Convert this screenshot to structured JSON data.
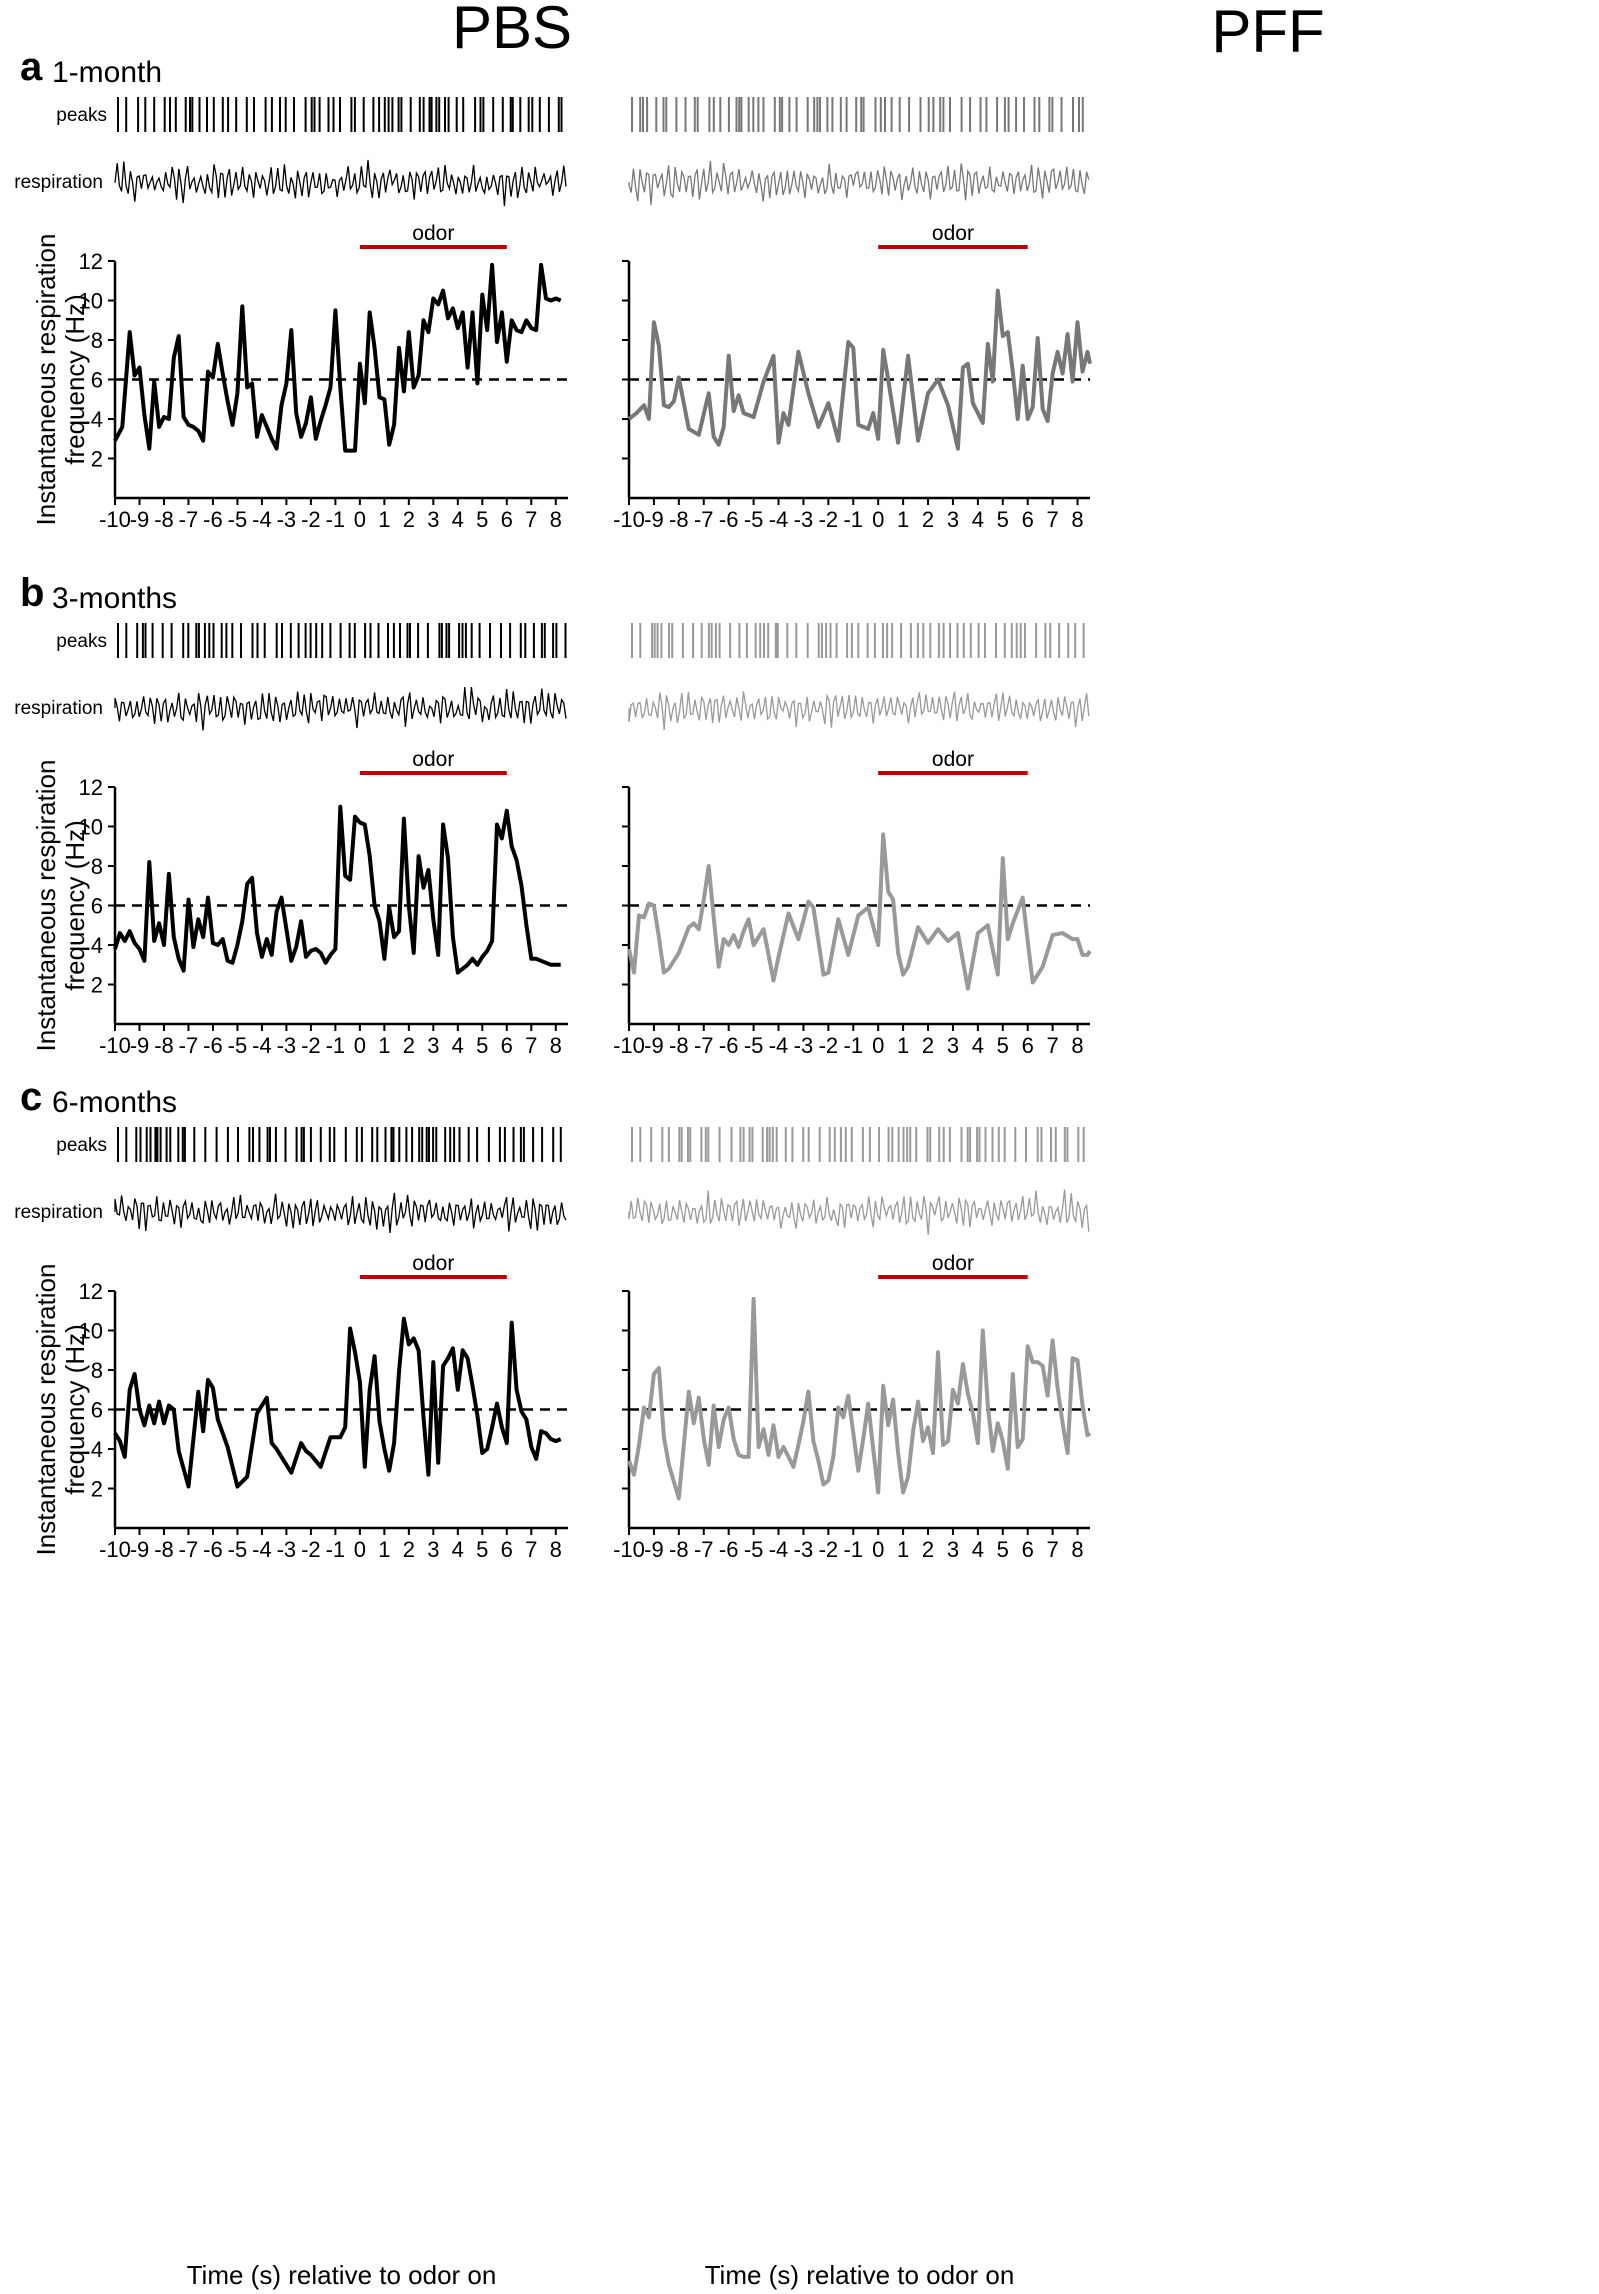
{
  "columns": [
    "PBS",
    "PFF"
  ],
  "trace_labels": {
    "peaks": "peaks",
    "respiration": "respiration"
  },
  "odor_label": "odor",
  "chart_data": {
    "type": "line",
    "xlabel": "Time (s) relative to odor on",
    "ylabel_lines": [
      "Instantaneous respiration",
      "frequency (Hz)"
    ],
    "xlim": [
      -10,
      8.5
    ],
    "ylim": [
      0,
      12
    ],
    "xticks": [
      -10,
      -9,
      -8,
      -7,
      -6,
      -5,
      -4,
      -3,
      -2,
      -1,
      0,
      1,
      2,
      3,
      4,
      5,
      6,
      7,
      8
    ],
    "yticks": [
      2,
      4,
      6,
      8,
      10,
      12
    ],
    "reference_line_y": 6,
    "odor_window": [
      0,
      6
    ],
    "colors": {
      "pbs": "#000000",
      "pff_1": "#777777",
      "pff_3": "#999999",
      "pff_6": "#999999",
      "odor": "#c00000"
    },
    "panels": [
      {
        "letter": "a",
        "age": "1-month",
        "pbs_x": [
          -10,
          -9.7,
          -9.4,
          -9.2,
          -9.0,
          -8.8,
          -8.6,
          -8.4,
          -8.2,
          -8.0,
          -7.8,
          -7.6,
          -7.4,
          -7.2,
          -7.0,
          -6.8,
          -6.6,
          -6.4,
          -6.2,
          -6.0,
          -5.8,
          -5.6,
          -5.4,
          -5.2,
          -5.0,
          -4.8,
          -4.6,
          -4.4,
          -4.2,
          -4.0,
          -3.8,
          -3.6,
          -3.4,
          -3.2,
          -3.0,
          -2.8,
          -2.6,
          -2.4,
          -2.2,
          -2.0,
          -1.8,
          -1.6,
          -1.4,
          -1.2,
          -1.0,
          -0.8,
          -0.6,
          -0.4,
          -0.2,
          0.0,
          0.2,
          0.4,
          0.6,
          0.8,
          1.0,
          1.2,
          1.4,
          1.6,
          1.8,
          2.0,
          2.2,
          2.4,
          2.6,
          2.8,
          3.0,
          3.2,
          3.4,
          3.6,
          3.8,
          4.0,
          4.2,
          4.4,
          4.6,
          4.8,
          5.0,
          5.2,
          5.4,
          5.6,
          5.8,
          6.0,
          6.2,
          6.4,
          6.6,
          6.8,
          7.0,
          7.2,
          7.4,
          7.6,
          7.8,
          8.0,
          8.2
        ],
        "pbs_y": [
          2.9,
          3.6,
          8.4,
          6.2,
          6.6,
          4.2,
          2.5,
          5.9,
          3.6,
          4.1,
          4.0,
          7.1,
          8.2,
          4.1,
          3.7,
          3.6,
          3.4,
          2.9,
          6.4,
          6.1,
          7.8,
          6.3,
          4.9,
          3.7,
          5.3,
          9.7,
          5.6,
          5.8,
          3.1,
          4.2,
          3.6,
          3.0,
          2.5,
          4.7,
          5.8,
          8.5,
          4.3,
          3.1,
          3.8,
          5.1,
          3.0,
          3.9,
          4.7,
          5.6,
          9.5,
          5.6,
          2.4,
          2.4,
          2.4,
          6.8,
          4.8,
          9.4,
          7.6,
          5.1,
          5.0,
          2.7,
          3.7,
          7.6,
          5.4,
          8.4,
          5.6,
          6.2,
          9.0,
          8.4,
          10.1,
          9.8,
          10.5,
          9.1,
          9.6,
          8.6,
          9.4,
          6.6,
          9.4,
          5.8,
          10.3,
          8.5,
          11.8,
          7.9,
          9.4,
          6.9,
          9.0,
          8.5,
          8.4,
          9.0,
          8.6,
          8.5,
          11.8,
          10.1,
          10.0,
          10.1,
          10.0
        ],
        "pff_x": [
          -10,
          -9.7,
          -9.4,
          -9.2,
          -9.0,
          -8.8,
          -8.6,
          -8.4,
          -8.2,
          -8.0,
          -7.6,
          -7.2,
          -6.8,
          -6.6,
          -6.4,
          -6.2,
          -6.0,
          -5.8,
          -5.6,
          -5.4,
          -5.0,
          -4.6,
          -4.2,
          -4.0,
          -3.8,
          -3.6,
          -3.2,
          -2.8,
          -2.4,
          -2.0,
          -1.6,
          -1.4,
          -1.2,
          -1.0,
          -0.8,
          -0.4,
          -0.2,
          0.0,
          0.2,
          0.4,
          0.8,
          1.2,
          1.6,
          2.0,
          2.4,
          2.8,
          3.2,
          3.4,
          3.6,
          3.8,
          4.0,
          4.2,
          4.4,
          4.6,
          4.8,
          5.0,
          5.2,
          5.4,
          5.6,
          5.8,
          6.0,
          6.2,
          6.4,
          6.6,
          6.8,
          7.0,
          7.2,
          7.4,
          7.6,
          7.8,
          8.0,
          8.2,
          8.4,
          8.5
        ],
        "pff_y": [
          4.0,
          4.3,
          4.7,
          4.0,
          8.9,
          7.7,
          4.7,
          4.6,
          4.9,
          6.1,
          3.5,
          3.2,
          5.3,
          3.1,
          2.7,
          3.6,
          7.2,
          4.4,
          5.2,
          4.3,
          4.1,
          5.9,
          7.2,
          2.8,
          4.3,
          3.7,
          7.4,
          5.3,
          3.6,
          4.8,
          2.9,
          5.4,
          7.9,
          7.6,
          3.7,
          3.5,
          4.3,
          3.0,
          7.5,
          6.0,
          2.8,
          7.2,
          2.9,
          5.3,
          6.0,
          4.7,
          2.5,
          6.6,
          6.8,
          4.8,
          4.3,
          3.8,
          7.8,
          5.9,
          10.5,
          8.2,
          8.4,
          6.4,
          4.0,
          6.7,
          4.0,
          4.6,
          8.1,
          4.5,
          3.9,
          6.3,
          7.4,
          6.3,
          8.3,
          5.9,
          8.9,
          6.4,
          7.4,
          6.8
        ]
      },
      {
        "letter": "b",
        "age": "3-months",
        "pbs_x": [
          -10,
          -9.8,
          -9.6,
          -9.4,
          -9.2,
          -9.0,
          -8.8,
          -8.6,
          -8.4,
          -8.2,
          -8.0,
          -7.8,
          -7.6,
          -7.4,
          -7.2,
          -7.0,
          -6.8,
          -6.6,
          -6.4,
          -6.2,
          -6.0,
          -5.8,
          -5.6,
          -5.4,
          -5.2,
          -5.0,
          -4.8,
          -4.6,
          -4.4,
          -4.2,
          -4.0,
          -3.8,
          -3.6,
          -3.4,
          -3.2,
          -3.0,
          -2.8,
          -2.6,
          -2.4,
          -2.2,
          -2.0,
          -1.8,
          -1.6,
          -1.4,
          -1.2,
          -1.0,
          -0.8,
          -0.6,
          -0.4,
          -0.2,
          0.0,
          0.2,
          0.4,
          0.6,
          0.8,
          1.0,
          1.2,
          1.4,
          1.6,
          1.8,
          2.0,
          2.2,
          2.4,
          2.6,
          2.8,
          3.0,
          3.2,
          3.4,
          3.6,
          3.8,
          4.0,
          4.2,
          4.4,
          4.6,
          4.8,
          5.0,
          5.2,
          5.4,
          5.6,
          5.8,
          6.0,
          6.2,
          6.4,
          6.6,
          6.8,
          7.0,
          7.2,
          7.4,
          7.6,
          7.8,
          8.0,
          8.2
        ],
        "pbs_y": [
          3.8,
          4.6,
          4.2,
          4.7,
          4.1,
          3.8,
          3.2,
          8.2,
          4.2,
          5.1,
          4.0,
          7.6,
          4.4,
          3.3,
          2.7,
          6.3,
          3.9,
          5.3,
          4.4,
          6.4,
          4.1,
          4.0,
          4.3,
          3.2,
          3.1,
          4.0,
          5.2,
          7.1,
          7.4,
          4.6,
          3.4,
          4.3,
          3.5,
          5.7,
          6.4,
          4.8,
          3.2,
          3.9,
          5.2,
          3.4,
          3.7,
          3.8,
          3.6,
          3.1,
          3.5,
          3.8,
          11.0,
          7.5,
          7.3,
          10.5,
          10.2,
          10.1,
          8.5,
          6.0,
          5.2,
          3.3,
          5.9,
          4.4,
          4.7,
          10.4,
          6.0,
          3.6,
          8.5,
          6.9,
          7.8,
          5.3,
          3.5,
          10.1,
          8.4,
          4.4,
          2.6,
          2.8,
          3.0,
          3.3,
          3.0,
          3.4,
          3.7,
          4.2,
          10.1,
          9.4,
          10.8,
          9.0,
          8.3,
          7.0,
          5.0,
          3.3,
          3.3,
          3.2,
          3.1,
          3.0,
          3.0,
          3.0
        ],
        "pff_x": [
          -10,
          -9.8,
          -9.6,
          -9.4,
          -9.2,
          -9.0,
          -8.8,
          -8.6,
          -8.4,
          -8.0,
          -7.6,
          -7.4,
          -7.2,
          -7.0,
          -6.8,
          -6.6,
          -6.4,
          -6.2,
          -6.0,
          -5.8,
          -5.6,
          -5.4,
          -5.2,
          -5.0,
          -4.6,
          -4.2,
          -4.0,
          -3.6,
          -3.2,
          -2.8,
          -2.6,
          -2.2,
          -2.0,
          -1.6,
          -1.2,
          -0.8,
          -0.4,
          0.0,
          0.2,
          0.4,
          0.6,
          0.8,
          1.0,
          1.2,
          1.6,
          2.0,
          2.4,
          2.8,
          3.2,
          3.6,
          4.0,
          4.4,
          4.8,
          5.0,
          5.2,
          5.4,
          5.8,
          6.0,
          6.2,
          6.6,
          7.0,
          7.4,
          7.8,
          8.0,
          8.2,
          8.4,
          8.5
        ],
        "pff_y": [
          3.8,
          2.6,
          5.5,
          5.4,
          6.1,
          6.0,
          4.4,
          2.6,
          2.8,
          3.6,
          4.9,
          5.1,
          4.8,
          6.3,
          8.0,
          5.4,
          2.9,
          4.3,
          4.0,
          4.5,
          3.9,
          4.7,
          5.3,
          4.0,
          4.8,
          2.2,
          3.4,
          5.6,
          4.3,
          6.2,
          5.9,
          2.5,
          2.6,
          5.3,
          3.5,
          5.5,
          5.9,
          4.0,
          9.6,
          6.7,
          6.3,
          3.6,
          2.5,
          2.9,
          4.9,
          4.1,
          4.8,
          4.2,
          4.6,
          1.8,
          4.6,
          5.0,
          2.5,
          8.4,
          4.3,
          5.1,
          6.4,
          4.2,
          2.1,
          2.9,
          4.5,
          4.6,
          4.3,
          4.3,
          3.5,
          3.5,
          3.7
        ]
      },
      {
        "letter": "c",
        "age": "6-months",
        "pbs_x": [
          -10,
          -9.8,
          -9.6,
          -9.4,
          -9.2,
          -9.0,
          -8.8,
          -8.6,
          -8.4,
          -8.2,
          -8.0,
          -7.8,
          -7.6,
          -7.4,
          -7.0,
          -6.6,
          -6.4,
          -6.2,
          -6.0,
          -5.8,
          -5.4,
          -5.0,
          -4.6,
          -4.2,
          -4.0,
          -3.8,
          -3.6,
          -3.4,
          -3.2,
          -2.8,
          -2.4,
          -2.2,
          -2.0,
          -1.6,
          -1.2,
          -0.8,
          -0.6,
          -0.4,
          -0.2,
          0.0,
          0.2,
          0.4,
          0.6,
          0.8,
          1.0,
          1.2,
          1.4,
          1.6,
          1.8,
          2.0,
          2.2,
          2.4,
          2.6,
          2.8,
          3.0,
          3.2,
          3.4,
          3.6,
          3.8,
          4.0,
          4.2,
          4.4,
          4.6,
          4.8,
          5.0,
          5.2,
          5.4,
          5.6,
          5.8,
          6.0,
          6.2,
          6.4,
          6.6,
          6.8,
          7.0,
          7.2,
          7.4,
          7.6,
          7.8,
          8.0,
          8.2
        ],
        "pbs_y": [
          4.8,
          4.4,
          3.6,
          7.0,
          7.8,
          6.0,
          5.2,
          6.2,
          5.3,
          6.4,
          5.3,
          6.2,
          6.0,
          3.9,
          2.1,
          6.9,
          4.9,
          7.5,
          7.1,
          5.5,
          4.1,
          2.1,
          2.6,
          5.8,
          6.2,
          6.6,
          4.3,
          4.0,
          3.6,
          2.8,
          4.3,
          3.9,
          3.7,
          3.1,
          4.6,
          4.6,
          5.1,
          10.1,
          8.9,
          7.4,
          3.1,
          7.0,
          8.7,
          5.4,
          4.0,
          2.9,
          4.3,
          7.9,
          10.6,
          9.3,
          9.6,
          9.0,
          5.6,
          2.7,
          8.4,
          3.3,
          8.2,
          8.6,
          9.1,
          7.0,
          9.0,
          8.6,
          7.2,
          5.7,
          3.8,
          4.0,
          5.1,
          6.3,
          5.1,
          4.3,
          10.4,
          7.0,
          5.9,
          5.5,
          4.1,
          3.5,
          4.9,
          4.8,
          4.5,
          4.4,
          4.5
        ],
        "pff_x": [
          -10,
          -9.8,
          -9.6,
          -9.4,
          -9.2,
          -9.0,
          -8.8,
          -8.6,
          -8.4,
          -8.0,
          -7.6,
          -7.4,
          -7.2,
          -7.0,
          -6.8,
          -6.6,
          -6.4,
          -6.2,
          -6.0,
          -5.8,
          -5.6,
          -5.4,
          -5.2,
          -5.0,
          -4.8,
          -4.6,
          -4.4,
          -4.2,
          -4.0,
          -3.8,
          -3.6,
          -3.4,
          -3.2,
          -3.0,
          -2.8,
          -2.6,
          -2.4,
          -2.2,
          -2.0,
          -1.8,
          -1.6,
          -1.4,
          -1.2,
          -1.0,
          -0.8,
          -0.6,
          -0.4,
          -0.2,
          0.0,
          0.2,
          0.4,
          0.6,
          0.8,
          1.0,
          1.2,
          1.4,
          1.6,
          1.8,
          2.0,
          2.2,
          2.4,
          2.6,
          2.8,
          3.0,
          3.2,
          3.4,
          3.6,
          3.8,
          4.0,
          4.2,
          4.4,
          4.6,
          4.8,
          5.0,
          5.2,
          5.4,
          5.6,
          5.8,
          6.0,
          6.2,
          6.4,
          6.6,
          6.8,
          7.0,
          7.2,
          7.4,
          7.6,
          7.8,
          8.0,
          8.2,
          8.4,
          8.5
        ],
        "pff_y": [
          3.4,
          2.7,
          4.2,
          6.1,
          5.6,
          7.8,
          8.1,
          4.6,
          3.2,
          1.5,
          6.9,
          5.3,
          6.6,
          4.5,
          3.2,
          6.2,
          4.1,
          5.5,
          6.1,
          4.5,
          3.7,
          3.6,
          3.6,
          11.6,
          4.1,
          5.0,
          3.7,
          5.2,
          3.6,
          4.1,
          3.6,
          3.1,
          4.2,
          5.4,
          6.9,
          4.4,
          3.4,
          2.2,
          2.4,
          3.6,
          6.1,
          5.6,
          6.7,
          4.8,
          2.9,
          4.5,
          6.3,
          4.0,
          1.8,
          7.2,
          5.2,
          6.5,
          3.8,
          1.8,
          2.6,
          4.9,
          6.4,
          4.4,
          5.1,
          3.8,
          8.9,
          4.2,
          4.4,
          7.0,
          6.3,
          8.3,
          6.8,
          5.8,
          4.3,
          10.0,
          6.2,
          3.9,
          5.3,
          4.4,
          3.0,
          7.8,
          4.1,
          4.5,
          9.2,
          8.4,
          8.4,
          8.2,
          6.7,
          9.5,
          7.1,
          5.3,
          3.8,
          8.6,
          8.5,
          6.2,
          4.7,
          4.8
        ]
      }
    ]
  }
}
